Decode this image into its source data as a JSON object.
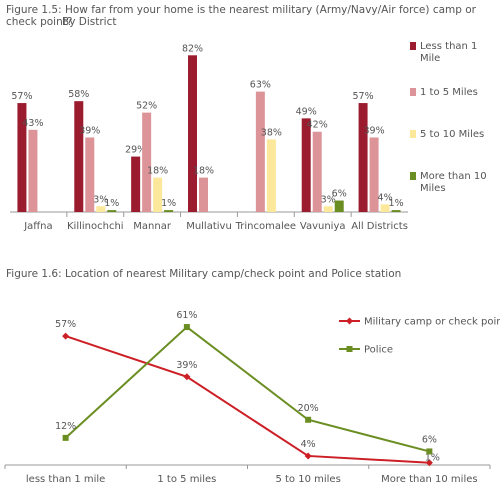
{
  "figure1": {
    "title": "Figure 1.5: How far from your home is the nearest military (Army/Navy/Air force) camp or check point?",
    "subtitle": "By District"
  },
  "figure2": {
    "title": "Figure 1.6: Location of nearest Military camp/check point and Police station"
  },
  "chart_data": [
    {
      "type": "bar",
      "categories": [
        "Jaffna",
        "Killinochchi",
        "Mannar",
        "Mullativu",
        "Trincomalee",
        "Vavuniya",
        "All Districts"
      ],
      "series": [
        {
          "name": "Less than 1 Mile",
          "color": "#9b1c2e",
          "values": [
            57,
            58,
            29,
            82,
            null,
            49,
            57
          ],
          "labels": [
            "57%",
            "58%",
            "29%",
            "82%",
            "",
            "49%",
            "57%"
          ]
        },
        {
          "name": "1 to 5 Miles",
          "color": "#dc9499",
          "values": [
            43,
            39,
            52,
            18,
            63,
            42,
            39
          ],
          "labels": [
            "43%",
            "39%",
            "52%",
            "18%",
            "63%",
            "42%",
            "39%"
          ]
        },
        {
          "name": "5 to 10 Miles",
          "color": "#fbe89a",
          "values": [
            null,
            3,
            18,
            null,
            38,
            3,
            4
          ],
          "labels": [
            "",
            "3%",
            "18%",
            "",
            "38%",
            "3%",
            "4%"
          ]
        },
        {
          "name": "More than 10 Miles",
          "color": "#6b8e23",
          "values": [
            null,
            1,
            1,
            null,
            null,
            6,
            1
          ],
          "labels": [
            "",
            "1%",
            "1%",
            "",
            "",
            "6%",
            "1%"
          ]
        }
      ],
      "ylim": [
        0,
        90
      ]
    },
    {
      "type": "line",
      "categories": [
        "less than 1 mile",
        "1 to 5 miles",
        "5 to 10 miles",
        "More than 10 miles"
      ],
      "series": [
        {
          "name": "Military camp or check point",
          "color": "#cc1f26",
          "marker": "diamond",
          "values": [
            57,
            39,
            4,
            1
          ],
          "labels": [
            "57%",
            "39%",
            "4%",
            "1%"
          ]
        },
        {
          "name": "Police",
          "color": "#6b8e23",
          "marker": "square",
          "values": [
            12,
            61,
            20,
            6
          ],
          "labels": [
            "12%",
            "61%",
            "20%",
            "6%"
          ]
        }
      ],
      "ylim": [
        0,
        65
      ]
    }
  ]
}
